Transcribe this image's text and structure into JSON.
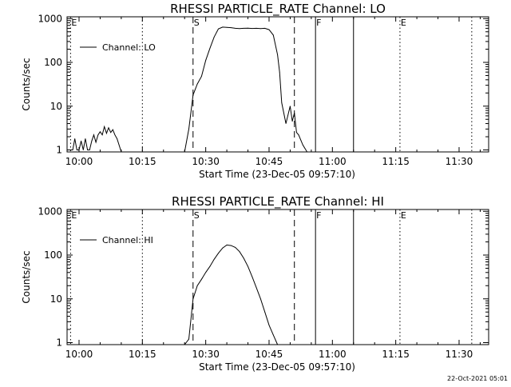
{
  "chart_data": [
    {
      "type": "line",
      "title": "RHESSI PARTICLE_RATE Channel: LO",
      "xlabel": "Start Time (23-Dec-05 09:57:10)",
      "ylabel": "Counts/sec",
      "y_scale": "log",
      "ylim": [
        0.9,
        1100
      ],
      "x_ticks": [
        "10:00",
        "10:15",
        "10:30",
        "10:45",
        "11:00",
        "11:15",
        "11:30"
      ],
      "y_ticks": [
        "1",
        "10",
        "100",
        "1000"
      ],
      "legend": {
        "position": "top-left",
        "entries": [
          "Channel: LO"
        ]
      },
      "markers": [
        {
          "label": "S",
          "time": "10:27",
          "style": "dashed"
        },
        {
          "time": "10:51",
          "style": "dashed"
        },
        {
          "label": "F",
          "time": "10:56",
          "style": "solid"
        },
        {
          "time": "11:05",
          "style": "solid"
        },
        {
          "label": "E",
          "time": "11:16",
          "style": "dotted"
        },
        {
          "time": "10:15",
          "style": "dotted"
        },
        {
          "time": "11:33",
          "style": "dotted"
        },
        {
          "label": "E",
          "time": "09:58",
          "style": "dotted"
        }
      ],
      "series": [
        {
          "x": [
            "09:58",
            "09:58:30",
            "09:59",
            "09:59:30",
            "10:00",
            "10:00:30",
            "10:01",
            "10:01:30",
            "10:02",
            "10:02:30",
            "10:03",
            "10:03:30",
            "10:04",
            "10:04:30",
            "10:05",
            "10:05:30",
            "10:06",
            "10:06:30",
            "10:07",
            "10:07:30",
            "10:08",
            "10:08:30",
            "10:09",
            "10:10",
            "10:15",
            "10:20",
            "10:25",
            "10:26",
            "10:27",
            "10:28",
            "10:29",
            "10:30",
            "10:31",
            "10:32",
            "10:33",
            "10:34",
            "10:35",
            "10:36",
            "10:37",
            "10:38",
            "10:39",
            "10:40",
            "10:41",
            "10:42",
            "10:43",
            "10:44",
            "10:45",
            "10:46",
            "10:47",
            "10:47:30",
            "10:48",
            "10:49",
            "10:50",
            "10:50:30",
            "10:51",
            "10:51:30",
            "10:52",
            "10:53",
            "10:54"
          ],
          "y": [
            1,
            1,
            1.8,
            1,
            1,
            1.6,
            1,
            1.8,
            1,
            1,
            1.6,
            2.2,
            1.5,
            2.2,
            2.6,
            2.2,
            3.4,
            2.4,
            3.2,
            2.5,
            2.9,
            2.2,
            1.8,
            0.9,
            0.9,
            0.9,
            0.9,
            3,
            18,
            32,
            48,
            110,
            210,
            380,
            580,
            640,
            630,
            620,
            600,
            590,
            600,
            605,
            595,
            600,
            590,
            600,
            560,
            420,
            150,
            60,
            12,
            4,
            10,
            4.5,
            7,
            2.5,
            2.2,
            1.3,
            0.9
          ]
        }
      ]
    },
    {
      "type": "line",
      "title": "RHESSI PARTICLE_RATE Channel: HI",
      "xlabel": "Start Time (23-Dec-05 09:57:10)",
      "ylabel": "Counts/sec",
      "y_scale": "log",
      "ylim": [
        0.9,
        1100
      ],
      "x_ticks": [
        "10:00",
        "10:15",
        "10:30",
        "10:45",
        "11:00",
        "11:15",
        "11:30"
      ],
      "y_ticks": [
        "1",
        "10",
        "100",
        "1000"
      ],
      "legend": {
        "position": "top-left",
        "entries": [
          "Channel: HI"
        ]
      },
      "markers": [
        {
          "label": "S",
          "time": "10:27",
          "style": "dashed"
        },
        {
          "time": "10:51",
          "style": "dashed"
        },
        {
          "label": "F",
          "time": "10:56",
          "style": "solid"
        },
        {
          "time": "11:05",
          "style": "solid"
        },
        {
          "label": "E",
          "time": "11:16",
          "style": "dotted"
        },
        {
          "time": "10:15",
          "style": "dotted"
        },
        {
          "time": "11:33",
          "style": "dotted"
        },
        {
          "label": "E",
          "time": "09:58",
          "style": "dotted"
        }
      ],
      "series": [
        {
          "x": [
            "10:25",
            "10:26",
            "10:27",
            "10:28",
            "10:29",
            "10:30",
            "10:31",
            "10:32",
            "10:33",
            "10:34",
            "10:35",
            "10:36",
            "10:37",
            "10:38",
            "10:39",
            "10:40",
            "10:41",
            "10:42",
            "10:43",
            "10:44",
            "10:45",
            "10:46",
            "10:47"
          ],
          "y": [
            0.9,
            1.2,
            10,
            20,
            28,
            40,
            55,
            80,
            110,
            145,
            170,
            165,
            150,
            120,
            85,
            55,
            32,
            18,
            10,
            5,
            2.5,
            1.5,
            0.9
          ]
        }
      ]
    }
  ],
  "footer": {
    "timestamp": "22-Oct-2021 05:01"
  }
}
